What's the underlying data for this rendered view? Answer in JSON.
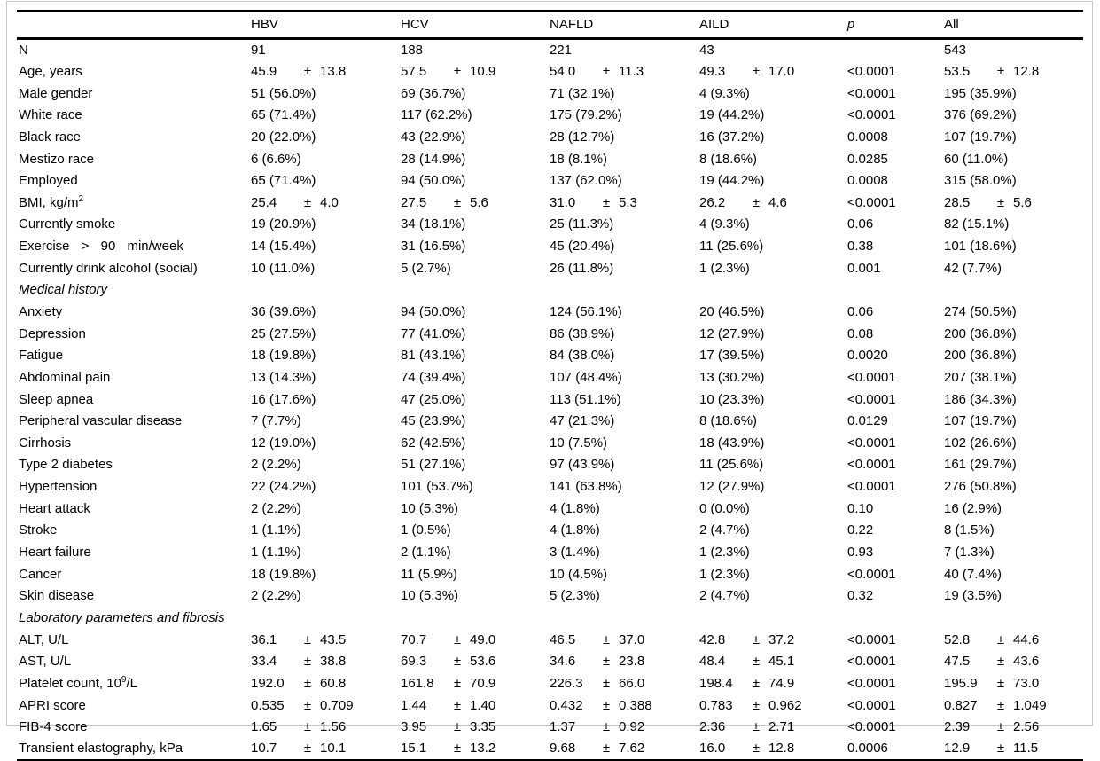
{
  "table": {
    "plus_minus": "±",
    "columns": [
      {
        "label": ""
      },
      {
        "label": "HBV"
      },
      {
        "label": "HCV"
      },
      {
        "label": "NAFLD"
      },
      {
        "label": "AILD"
      },
      {
        "label": "p",
        "italic": true
      },
      {
        "label": "All"
      }
    ],
    "rows": [
      {
        "label": "N",
        "cells": [
          "91",
          "188",
          "221",
          "43",
          "",
          "543"
        ]
      },
      {
        "label": "Age, years",
        "cells": [
          [
            "45.9",
            "13.8"
          ],
          [
            "57.5",
            "10.9"
          ],
          [
            "54.0",
            "11.3"
          ],
          [
            "49.3",
            "17.0"
          ],
          "<0.0001",
          [
            "53.5",
            "12.8"
          ]
        ]
      },
      {
        "label": "Male gender",
        "cells": [
          "51 (56.0%)",
          "69 (36.7%)",
          "71 (32.1%)",
          "4 (9.3%)",
          "<0.0001",
          "195 (35.9%)"
        ]
      },
      {
        "label": "White race",
        "cells": [
          "65 (71.4%)",
          "117 (62.2%)",
          "175 (79.2%)",
          "19 (44.2%)",
          "<0.0001",
          "376 (69.2%)"
        ]
      },
      {
        "label": "Black race",
        "cells": [
          "20 (22.0%)",
          "43 (22.9%)",
          "28 (12.7%)",
          "16 (37.2%)",
          "0.0008",
          "107 (19.7%)"
        ]
      },
      {
        "label": "Mestizo race",
        "cells": [
          "6 (6.6%)",
          "28 (14.9%)",
          "18 (8.1%)",
          "8 (18.6%)",
          "0.0285",
          "60 (11.0%)"
        ]
      },
      {
        "label": "Employed",
        "cells": [
          "65 (71.4%)",
          "94 (50.0%)",
          "137 (62.0%)",
          "19 (44.2%)",
          "0.0008",
          "315 (58.0%)"
        ]
      },
      {
        "label": "BMI, kg/m",
        "sup": "2",
        "after": "",
        "cells": [
          [
            "25.4",
            "4.0"
          ],
          [
            "27.5",
            "5.6"
          ],
          [
            "31.0",
            "5.3"
          ],
          [
            "26.2",
            "4.6"
          ],
          "<0.0001",
          [
            "28.5",
            "5.6"
          ]
        ]
      },
      {
        "label": "Currently smoke",
        "cells": [
          "19 (20.9%)",
          "34 (18.1%)",
          "25 (11.3%)",
          "4 (9.3%)",
          "0.06",
          "82 (15.1%)"
        ]
      },
      {
        "label": "Exercise > 90 min/week",
        "justify": true,
        "cells": [
          "14 (15.4%)",
          "31 (16.5%)",
          "45 (20.4%)",
          "11 (25.6%)",
          "0.38",
          "101 (18.6%)"
        ]
      },
      {
        "label": "Currently drink alcohol (social)",
        "cells": [
          "10 (11.0%)",
          "5 (2.7%)",
          "26 (11.8%)",
          "1 (2.3%)",
          "0.001",
          "42 (7.7%)"
        ]
      },
      {
        "label": "Medical history",
        "section": true
      },
      {
        "label": "Anxiety",
        "cells": [
          "36 (39.6%)",
          "94 (50.0%)",
          "124 (56.1%)",
          "20 (46.5%)",
          "0.06",
          "274 (50.5%)"
        ]
      },
      {
        "label": "Depression",
        "cells": [
          "25 (27.5%)",
          "77 (41.0%)",
          "86 (38.9%)",
          "12 (27.9%)",
          "0.08",
          "200 (36.8%)"
        ]
      },
      {
        "label": "Fatigue",
        "cells": [
          "18 (19.8%)",
          "81 (43.1%)",
          "84 (38.0%)",
          "17 (39.5%)",
          "0.0020",
          "200 (36.8%)"
        ]
      },
      {
        "label": "Abdominal pain",
        "cells": [
          "13 (14.3%)",
          "74 (39.4%)",
          "107 (48.4%)",
          "13 (30.2%)",
          "<0.0001",
          "207 (38.1%)"
        ]
      },
      {
        "label": "Sleep apnea",
        "cells": [
          "16 (17.6%)",
          "47 (25.0%)",
          "113 (51.1%)",
          "10 (23.3%)",
          "<0.0001",
          "186 (34.3%)"
        ]
      },
      {
        "label": "Peripheral vascular disease",
        "cells": [
          "7 (7.7%)",
          "45 (23.9%)",
          "47 (21.3%)",
          "8 (18.6%)",
          "0.0129",
          "107 (19.7%)"
        ]
      },
      {
        "label": "Cirrhosis",
        "cells": [
          "12 (19.0%)",
          "62 (42.5%)",
          "10 (7.5%)",
          "18 (43.9%)",
          "<0.0001",
          "102 (26.6%)"
        ]
      },
      {
        "label": "Type 2 diabetes",
        "cells": [
          "2 (2.2%)",
          "51 (27.1%)",
          "97 (43.9%)",
          "11 (25.6%)",
          "<0.0001",
          "161 (29.7%)"
        ]
      },
      {
        "label": "Hypertension",
        "cells": [
          "22 (24.2%)",
          "101 (53.7%)",
          "141 (63.8%)",
          "12 (27.9%)",
          "<0.0001",
          "276 (50.8%)"
        ]
      },
      {
        "label": "Heart attack",
        "cells": [
          "2 (2.2%)",
          "10 (5.3%)",
          "4 (1.8%)",
          "0 (0.0%)",
          "0.10",
          "16 (2.9%)"
        ]
      },
      {
        "label": "Stroke",
        "cells": [
          "1 (1.1%)",
          "1 (0.5%)",
          "4 (1.8%)",
          "2 (4.7%)",
          "0.22",
          "8 (1.5%)"
        ]
      },
      {
        "label": "Heart failure",
        "cells": [
          "1 (1.1%)",
          "2 (1.1%)",
          "3 (1.4%)",
          "1 (2.3%)",
          "0.93",
          "7 (1.3%)"
        ]
      },
      {
        "label": "Cancer",
        "cells": [
          "18 (19.8%)",
          "11 (5.9%)",
          "10 (4.5%)",
          "1 (2.3%)",
          "<0.0001",
          "40 (7.4%)"
        ]
      },
      {
        "label": "Skin disease",
        "cells": [
          "2 (2.2%)",
          "10 (5.3%)",
          "5 (2.3%)",
          "2 (4.7%)",
          "0.32",
          "19 (3.5%)"
        ]
      },
      {
        "label": "Laboratory parameters and fibrosis",
        "section": true
      },
      {
        "label": "ALT, U/L",
        "cells": [
          [
            "36.1",
            "43.5"
          ],
          [
            "70.7",
            "49.0"
          ],
          [
            "46.5",
            "37.0"
          ],
          [
            "42.8",
            "37.2"
          ],
          "<0.0001",
          [
            "52.8",
            "44.6"
          ]
        ]
      },
      {
        "label": "AST, U/L",
        "cells": [
          [
            "33.4",
            "38.8"
          ],
          [
            "69.3",
            "53.6"
          ],
          [
            "34.6",
            "23.8"
          ],
          [
            "48.4",
            "45.1"
          ],
          "<0.0001",
          [
            "47.5",
            "43.6"
          ]
        ]
      },
      {
        "label": "Platelet count, 10",
        "sup": "9",
        "after": "/L",
        "cells": [
          [
            "192.0",
            "60.8"
          ],
          [
            "161.8",
            "70.9"
          ],
          [
            "226.3",
            "66.0"
          ],
          [
            "198.4",
            "74.9"
          ],
          "<0.0001",
          [
            "195.9",
            "73.0"
          ]
        ]
      },
      {
        "label": "APRI score",
        "cells": [
          [
            "0.535",
            "0.709"
          ],
          [
            "1.44",
            "1.40"
          ],
          [
            "0.432",
            "0.388"
          ],
          [
            "0.783",
            "0.962"
          ],
          "<0.0001",
          [
            "0.827",
            "1.049"
          ]
        ]
      },
      {
        "label": "FIB-4 score",
        "cells": [
          [
            "1.65",
            "1.56"
          ],
          [
            "3.95",
            "3.35"
          ],
          [
            "1.37",
            "0.92"
          ],
          [
            "2.36",
            "2.71"
          ],
          "<0.0001",
          [
            "2.39",
            "2.56"
          ]
        ]
      },
      {
        "label": "Transient elastography, kPa",
        "cells": [
          [
            "10.7",
            "10.1"
          ],
          [
            "15.1",
            "13.2"
          ],
          [
            "9.68",
            "7.62"
          ],
          [
            "16.0",
            "12.8"
          ],
          "0.0006",
          [
            "12.9",
            "11.5"
          ]
        ]
      }
    ]
  }
}
